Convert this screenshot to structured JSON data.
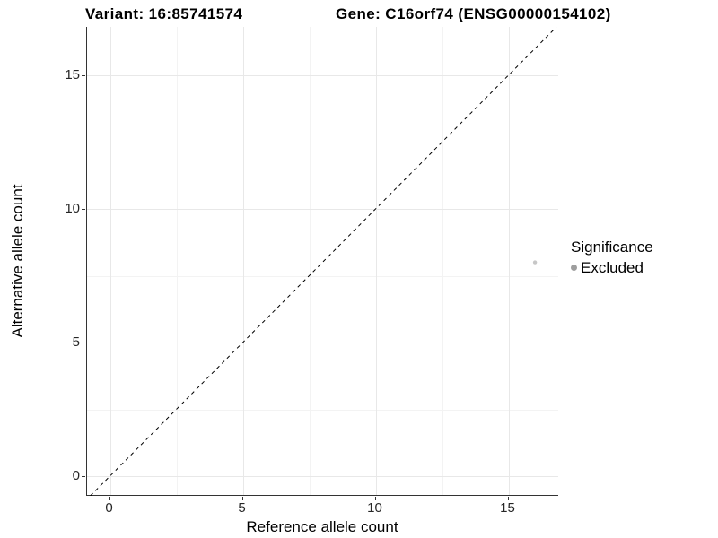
{
  "header": {
    "variant_title": "Variant: 16:85741574",
    "gene_title": "Gene: C16orf74 (ENSG00000154102)"
  },
  "axes": {
    "x": {
      "label": "Reference allele count",
      "major_ticks": [
        0,
        5,
        10,
        15
      ],
      "minor_ticks": [
        2.5,
        7.5,
        12.5
      ],
      "tick_labels": [
        "0",
        "5",
        "10",
        "15"
      ],
      "range": [
        -0.8,
        16.8
      ]
    },
    "y": {
      "label": "Alternative allele count",
      "major_ticks": [
        0,
        5,
        10,
        15
      ],
      "minor_ticks": [
        2.5,
        7.5,
        12.5
      ],
      "tick_labels": [
        "0",
        "5",
        "10",
        "15"
      ],
      "range": [
        -0.75,
        16.8
      ]
    }
  },
  "legend": {
    "title": "Significance",
    "items": [
      {
        "label": "Excluded",
        "color": "#9e9e9e"
      }
    ]
  },
  "chart_data": {
    "type": "scatter",
    "title": "Variant: 16:85741574 | Gene: C16orf74 (ENSG00000154102)",
    "xlabel": "Reference allele count",
    "ylabel": "Alternative allele count",
    "xlim": [
      -0.8,
      16.8
    ],
    "ylim": [
      -0.75,
      16.8
    ],
    "grid": "major+minor",
    "legend_position": "right",
    "series": [
      {
        "name": "Excluded",
        "color": "#c7c7c7",
        "points": [
          {
            "x": 16,
            "y": 8
          }
        ]
      }
    ],
    "reference_line": {
      "type": "identity y=x",
      "style": "dashed",
      "color": "#000000"
    }
  },
  "colors": {
    "axis_line": "#333333",
    "tick_text": "#262626",
    "grid_major": "#e8e8e8",
    "grid_minor": "#f3f3f3",
    "point": "#c7c7c7",
    "legend_dot": "#9e9e9e",
    "dashed_line": "#000000",
    "background": "#ffffff"
  }
}
